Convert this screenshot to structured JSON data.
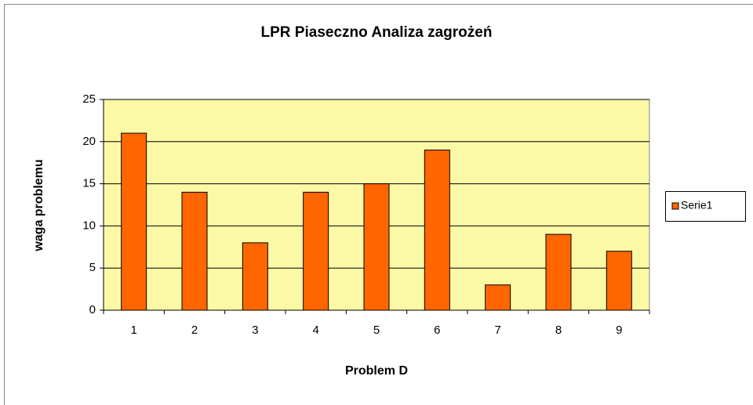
{
  "chart_data": {
    "type": "bar",
    "title": "LPR Piaseczno Analiza zagrożeń",
    "x_label": "Problem D",
    "y_label": "waga problemu",
    "categories": [
      "1",
      "2",
      "3",
      "4",
      "5",
      "6",
      "7",
      "8",
      "9"
    ],
    "series": [
      {
        "name": "Serie1",
        "color": "#ff6600",
        "values": [
          21,
          14,
          8,
          14,
          15,
          19,
          3,
          9,
          7
        ]
      }
    ],
    "ylim": [
      0,
      25
    ],
    "yticks": [
      0,
      5,
      10,
      15,
      20,
      25
    ],
    "grid": true,
    "legend": "right",
    "plot_background": "#fbf9a6"
  }
}
